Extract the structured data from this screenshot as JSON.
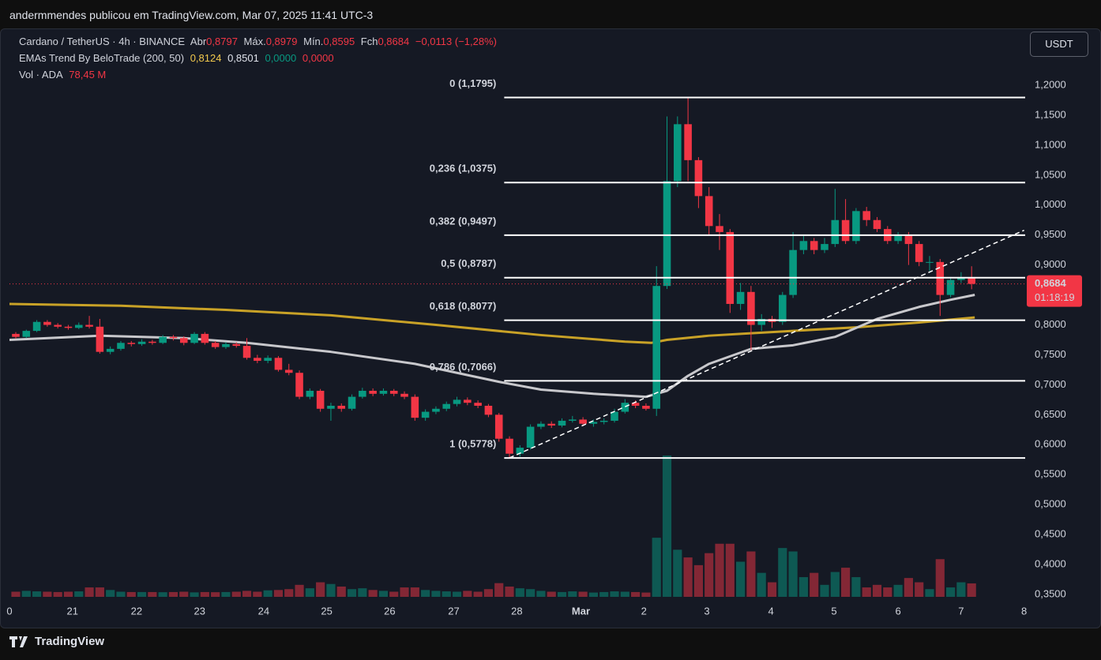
{
  "header": {
    "author_line": "andermmendes publicou em TradingView.com, Mar 07, 2025 11:41 UTC-3"
  },
  "chart_data": {
    "type": "candlestick",
    "legend": {
      "symbol": "Cardano / TetherUS · 4h · BINANCE",
      "open_label": "Abr",
      "open": "0,8797",
      "high_label": "Máx.",
      "high": "0,8979",
      "low_label": "Mín.",
      "low": "0,8595",
      "close_label": "Fch",
      "close": "0,8684",
      "change": "−0,0113 (−1,28%)"
    },
    "indicator": {
      "name": "EMAs Trend By BeloTrade (200, 50)",
      "values": [
        "0,8124",
        "0,8501",
        "0,0000",
        "0,0000"
      ]
    },
    "volume_legend": {
      "name": "Vol · ADA",
      "value": "78,45 M"
    },
    "currency": "USDT",
    "last_price": {
      "value": 0.8684,
      "label": "0,8684"
    },
    "countdown": "01:18:19",
    "up_color": "#089981",
    "down_color": "#f23645",
    "open": [
      0.785,
      0.78,
      0.79,
      0.805,
      0.8,
      0.797,
      0.795,
      0.8,
      0.797,
      0.755,
      0.76,
      0.77,
      0.768,
      0.772,
      0.77,
      0.78,
      0.778,
      0.77,
      0.785,
      0.77,
      0.763,
      0.768,
      0.765,
      0.745,
      0.74,
      0.745,
      0.725,
      0.72,
      0.68,
      0.69,
      0.66,
      0.665,
      0.66,
      0.68,
      0.69,
      0.685,
      0.69,
      0.685,
      0.68,
      0.645,
      0.655,
      0.66,
      0.668,
      0.675,
      0.67,
      0.665,
      0.65,
      0.61,
      0.585,
      0.595,
      0.63,
      0.635,
      0.632,
      0.64,
      0.642,
      0.635,
      0.638,
      0.64,
      0.655,
      0.67,
      0.665,
      0.66,
      0.865,
      1.04,
      1.135,
      1.075,
      1.015,
      0.965,
      0.955,
      0.835,
      0.855,
      0.8,
      0.81,
      0.805,
      0.85,
      0.925,
      0.94,
      0.925,
      0.935,
      0.975,
      0.94,
      0.99,
      0.975,
      0.96,
      0.94,
      0.95,
      0.935,
      0.905,
      0.905,
      0.85,
      0.875,
      0.8797
    ],
    "high": [
      0.788,
      0.792,
      0.808,
      0.808,
      0.803,
      0.8,
      0.804,
      0.815,
      0.81,
      0.764,
      0.773,
      0.773,
      0.776,
      0.775,
      0.783,
      0.783,
      0.781,
      0.788,
      0.788,
      0.773,
      0.771,
      0.771,
      0.778,
      0.75,
      0.749,
      0.748,
      0.735,
      0.724,
      0.694,
      0.693,
      0.67,
      0.669,
      0.684,
      0.695,
      0.694,
      0.694,
      0.693,
      0.689,
      0.684,
      0.659,
      0.664,
      0.672,
      0.68,
      0.679,
      0.674,
      0.668,
      0.653,
      0.614,
      0.599,
      0.634,
      0.639,
      0.639,
      0.644,
      0.648,
      0.646,
      0.642,
      0.644,
      0.66,
      0.676,
      0.674,
      0.669,
      0.898,
      1.148,
      1.148,
      1.1795,
      1.08,
      1.03,
      0.985,
      0.96,
      0.87,
      0.865,
      0.818,
      0.815,
      0.855,
      0.955,
      0.95,
      0.945,
      0.945,
      1.027,
      1.01,
      0.995,
      0.997,
      0.98,
      0.965,
      0.955,
      0.955,
      0.94,
      0.915,
      0.91,
      0.88,
      0.888,
      0.8979
    ],
    "low": [
      0.777,
      0.778,
      0.788,
      0.797,
      0.794,
      0.792,
      0.793,
      0.794,
      0.752,
      0.751,
      0.757,
      0.764,
      0.765,
      0.767,
      0.768,
      0.774,
      0.766,
      0.768,
      0.767,
      0.76,
      0.76,
      0.762,
      0.742,
      0.736,
      0.736,
      0.722,
      0.716,
      0.676,
      0.676,
      0.655,
      0.64,
      0.655,
      0.657,
      0.677,
      0.681,
      0.682,
      0.681,
      0.676,
      0.64,
      0.64,
      0.651,
      0.656,
      0.664,
      0.666,
      0.661,
      0.646,
      0.605,
      0.578,
      0.58,
      0.592,
      0.626,
      0.628,
      0.629,
      0.637,
      0.631,
      0.63,
      0.634,
      0.637,
      0.652,
      0.661,
      0.657,
      0.648,
      0.86,
      1.03,
      1.04,
      0.995,
      0.95,
      0.925,
      0.82,
      0.825,
      0.758,
      0.79,
      0.795,
      0.8,
      0.845,
      0.918,
      0.918,
      0.92,
      0.93,
      0.935,
      0.935,
      0.965,
      0.955,
      0.935,
      0.935,
      0.9,
      0.898,
      0.89,
      0.815,
      0.846,
      0.87,
      0.8595
    ],
    "close": [
      0.78,
      0.79,
      0.805,
      0.8,
      0.797,
      0.795,
      0.8,
      0.797,
      0.755,
      0.76,
      0.77,
      0.768,
      0.772,
      0.77,
      0.78,
      0.778,
      0.77,
      0.785,
      0.77,
      0.763,
      0.768,
      0.765,
      0.745,
      0.74,
      0.745,
      0.725,
      0.72,
      0.68,
      0.69,
      0.66,
      0.665,
      0.66,
      0.68,
      0.69,
      0.685,
      0.69,
      0.685,
      0.68,
      0.645,
      0.655,
      0.66,
      0.668,
      0.675,
      0.67,
      0.665,
      0.65,
      0.61,
      0.585,
      0.595,
      0.63,
      0.635,
      0.632,
      0.64,
      0.642,
      0.635,
      0.638,
      0.64,
      0.655,
      0.67,
      0.665,
      0.66,
      0.865,
      1.04,
      1.135,
      1.075,
      1.015,
      0.965,
      0.955,
      0.835,
      0.855,
      0.8,
      0.81,
      0.805,
      0.85,
      0.925,
      0.94,
      0.925,
      0.935,
      0.975,
      0.94,
      0.99,
      0.975,
      0.96,
      0.94,
      0.95,
      0.935,
      0.905,
      0.905,
      0.85,
      0.875,
      0.8797,
      0.8684
    ],
    "volume": [
      30,
      35,
      32,
      30,
      28,
      30,
      32,
      55,
      55,
      40,
      30,
      28,
      28,
      28,
      27,
      28,
      30,
      26,
      28,
      27,
      28,
      30,
      35,
      30,
      38,
      40,
      45,
      70,
      50,
      85,
      75,
      60,
      45,
      50,
      40,
      35,
      30,
      55,
      55,
      40,
      35,
      32,
      30,
      35,
      30,
      45,
      80,
      60,
      50,
      45,
      35,
      30,
      28,
      32,
      30,
      25,
      28,
      32,
      30,
      28,
      25,
      345,
      825,
      275,
      230,
      185,
      255,
      310,
      310,
      205,
      265,
      140,
      85,
      285,
      265,
      115,
      140,
      70,
      145,
      170,
      115,
      55,
      70,
      55,
      70,
      110,
      85,
      45,
      220,
      55,
      85,
      78.45
    ],
    "ema_series": [
      {
        "color": "#c9a227",
        "x": [
          -0.6,
          10,
          20,
          30,
          40,
          50,
          58,
          60.5,
          62,
          66,
          70,
          74,
          80,
          86,
          91.3
        ],
        "values": [
          0.835,
          0.832,
          0.825,
          0.816,
          0.8,
          0.783,
          0.772,
          0.77,
          0.775,
          0.782,
          0.786,
          0.79,
          0.796,
          0.804,
          0.8124
        ]
      },
      {
        "color": "#c8c8cc",
        "x": [
          -0.6,
          8,
          16,
          22,
          30,
          38,
          46,
          50,
          55,
          60,
          62,
          64,
          66,
          70,
          74,
          78,
          82,
          86,
          89,
          91.3
        ],
        "values": [
          0.775,
          0.782,
          0.778,
          0.77,
          0.755,
          0.735,
          0.705,
          0.692,
          0.685,
          0.68,
          0.69,
          0.715,
          0.735,
          0.76,
          0.766,
          0.78,
          0.81,
          0.83,
          0.842,
          0.8501
        ]
      }
    ],
    "fib_levels": [
      {
        "value": 1.1795,
        "label": "0 (1,1795)"
      },
      {
        "value": 1.0375,
        "label": "0,236 (1,0375)"
      },
      {
        "value": 0.9497,
        "label": "0,382 (0,9497)"
      },
      {
        "value": 0.8787,
        "label": "0,5 (0,8787)"
      },
      {
        "value": 0.8077,
        "label": "0,618 (0,8077)"
      },
      {
        "value": 0.7066,
        "label": "0,786 (0,7066)"
      },
      {
        "value": 0.5778,
        "label": "1 (0,5778)"
      }
    ],
    "trendline": {
      "x": [
        47,
        96
      ],
      "values": [
        0.578,
        0.958
      ]
    },
    "xlim": [
      -0.6,
      96.1
    ],
    "ylim": [
      0.3342,
      1.2896
    ],
    "xticks": [
      {
        "value": -0.6,
        "label": "0"
      },
      {
        "value": 5.4,
        "label": "21"
      },
      {
        "value": 11.5,
        "label": "22"
      },
      {
        "value": 17.5,
        "label": "23"
      },
      {
        "value": 23.6,
        "label": "24"
      },
      {
        "value": 29.6,
        "label": "25"
      },
      {
        "value": 35.6,
        "label": "26"
      },
      {
        "value": 41.7,
        "label": "27"
      },
      {
        "value": 47.7,
        "label": "28"
      },
      {
        "value": 53.8,
        "label": "Mar"
      },
      {
        "value": 59.8,
        "label": "2"
      },
      {
        "value": 65.8,
        "label": "3"
      },
      {
        "value": 71.9,
        "label": "4"
      },
      {
        "value": 77.9,
        "label": "5"
      },
      {
        "value": 84.0,
        "label": "6"
      },
      {
        "value": 90.0,
        "label": "7"
      },
      {
        "value": 96.0,
        "label": "8"
      }
    ],
    "yticks": [
      {
        "value": 1.2,
        "label": "1,2000"
      },
      {
        "value": 1.15,
        "label": "1,1500"
      },
      {
        "value": 1.1,
        "label": "1,1000"
      },
      {
        "value": 1.05,
        "label": "1,0500"
      },
      {
        "value": 1.0,
        "label": "1,0000"
      },
      {
        "value": 0.95,
        "label": "0,9500"
      },
      {
        "value": 0.9,
        "label": "0,9000"
      },
      {
        "value": 0.85,
        "label": "0,8500"
      },
      {
        "value": 0.8,
        "label": "0,8000"
      },
      {
        "value": 0.75,
        "label": "0,7500"
      },
      {
        "value": 0.7,
        "label": "0,7000"
      },
      {
        "value": 0.65,
        "label": "0,6500"
      },
      {
        "value": 0.6,
        "label": "0,6000"
      },
      {
        "value": 0.55,
        "label": "0,5500"
      },
      {
        "value": 0.5,
        "label": "0,5000"
      },
      {
        "value": 0.45,
        "label": "0,4500"
      },
      {
        "value": 0.4,
        "label": "0,4000"
      },
      {
        "value": 0.35,
        "label": "0,3500"
      }
    ]
  },
  "footer": {
    "brand": "TradingView"
  }
}
